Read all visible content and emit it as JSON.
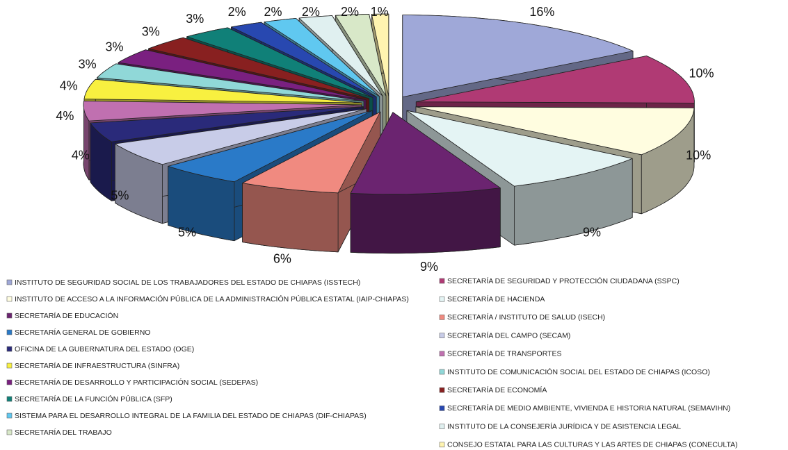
{
  "chart_data": {
    "type": "pie3d",
    "categories": [
      "INSTITUTO DE SEGURIDAD SOCIAL DE LOS TRABAJADORES DEL ESTADO DE CHIAPAS (ISSTECH)",
      "SECRETARÍA DE SEGURIDAD Y PROTECCIÓN CIUDADANA (SSPC)",
      "INSTITUTO DE ACCESO A LA INFORMACIÓN PÚBLICA DE LA ADMINISTRACIÓN PÚBLICA ESTATAL (IAIP-CHIAPAS)",
      "SECRETARÍA DE HACIENDA",
      "SECRETARÍA DE EDUCACIÓN",
      "SECRETARÍA / INSTITUTO DE SALUD (ISECH)",
      "SECRETARÍA GENERAL DE GOBIERNO",
      "SECRETARÍA DEL CAMPO (SECAM)",
      "OFICINA DE LA GUBERNATURA DEL ESTADO (OGE)",
      "SECRETARÍA DE TRANSPORTES",
      "SECRETARÍA DE INFRAESTRUCTURA (SINFRA)",
      "INSTITUTO DE COMUNICACIÓN SOCIAL DEL ESTADO DE CHIAPAS (ICOSO)",
      "SECRETARÍA DE DESARROLLO Y PARTICIPACIÓN SOCIAL (SEDEPAS)",
      "SECRETARÍA DE ECONOMÍA",
      "SECRETARÍA DE LA FUNCIÓN PÚBLICA (SFP)",
      "SECRETARÍA DE MEDIO AMBIENTE, VIVIENDA E HISTORIA NATURAL (SEMAVIHN)",
      "SISTEMA PARA EL DESARROLLO INTEGRAL DE LA FAMILIA DEL ESTADO DE CHIAPAS (DIF-CHIAPAS)",
      "INSTITUTO DE LA CONSEJERÍA JURÍDICA Y DE ASISTENCIA LEGAL",
      "SECRETARÍA DEL TRABAJO",
      "CONSEJO ESTATAL PARA LAS CULTURAS Y LAS ARTES DE CHIAPAS (CONECULTA)"
    ],
    "values": [
      16,
      10,
      10,
      9,
      9,
      6,
      5,
      5,
      4,
      4,
      4,
      3,
      3,
      3,
      3,
      2,
      2,
      2,
      2,
      1
    ],
    "value_labels": [
      "16%",
      "10%",
      "10%",
      "9%",
      "9%",
      "6%",
      "5%",
      "5%",
      "4%",
      "4%",
      "4%",
      "3%",
      "3%",
      "3%",
      "3%",
      "2%",
      "2%",
      "2%",
      "2%",
      "1%"
    ],
    "colors": [
      "#9fa8d8",
      "#b03a74",
      "#fffde0",
      "#e4f4f4",
      "#6b2470",
      "#f08a80",
      "#2a7ac8",
      "#c8cce8",
      "#2a2a7a",
      "#c070b0",
      "#f8f040",
      "#90d8d8",
      "#7a2080",
      "#882020",
      "#108078",
      "#2848b0",
      "#60c8f0",
      "#e0f0f0",
      "#d8e8c8",
      "#fff4b0"
    ]
  }
}
